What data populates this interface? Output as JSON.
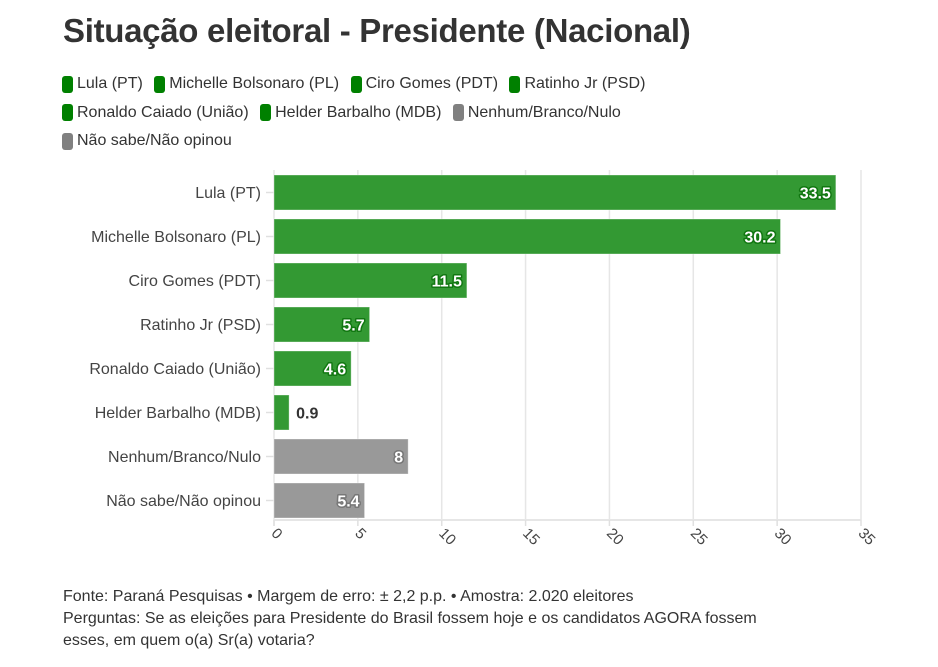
{
  "title": "Situação eleitoral - Presidente (Nacional)",
  "legend": [
    {
      "label": "Lula (PT)",
      "color": "#008000"
    },
    {
      "label": "Michelle Bolsonaro (PL)",
      "color": "#008000"
    },
    {
      "label": "Ciro Gomes (PDT)",
      "color": "#008000"
    },
    {
      "label": "Ratinho Jr (PSD)",
      "color": "#008000"
    },
    {
      "label": "Ronaldo Caiado (União)",
      "color": "#008000"
    },
    {
      "label": "Helder Barbalho (MDB)",
      "color": "#008000"
    },
    {
      "label": "Nenhum/Branco/Nulo",
      "color": "#808080"
    },
    {
      "label": "Não sabe/Não opinou",
      "color": "#808080"
    }
  ],
  "chart_data": {
    "type": "bar",
    "orientation": "horizontal",
    "title": "Situação eleitoral - Presidente (Nacional)",
    "categories": [
      "Lula (PT)",
      "Michelle Bolsonaro (PL)",
      "Ciro Gomes (PDT)",
      "Ratinho Jr (PSD)",
      "Ronaldo Caiado (União)",
      "Helder Barbalho (MDB)",
      "Nenhum/Branco/Nulo",
      "Não sabe/Não opinou"
    ],
    "values": [
      33.5,
      30.2,
      11.5,
      5.7,
      4.6,
      0.9,
      8,
      5.4
    ],
    "labels": [
      "33.5",
      "30.2",
      "11.5",
      "5.7",
      "4.6",
      "0.9",
      "8",
      "5.4"
    ],
    "colors": [
      "#339933",
      "#339933",
      "#339933",
      "#339933",
      "#339933",
      "#339933",
      "#999999",
      "#999999"
    ],
    "label_stroke": [
      "#117711",
      "#117711",
      "#117711",
      "#117711",
      "#117711",
      "#117711",
      "#777777",
      "#777777"
    ],
    "xlim": [
      0,
      35
    ],
    "xticks": [
      "0",
      "5",
      "10",
      "15",
      "20",
      "25",
      "30",
      "35"
    ],
    "xtick_values": [
      0,
      5,
      10,
      15,
      20,
      25,
      30,
      35
    ],
    "xlabel": "",
    "ylabel": "",
    "grid": true,
    "legend_position": "top-left"
  },
  "footer": {
    "source": "Fonte: Paraná Pesquisas • Margem de erro: ± 2,2 p.p. • Amostra: 2.020 eleitores",
    "question_line1": "Perguntas: Se as eleições para Presidente do Brasil fossem hoje e os candidatos AGORA fossem",
    "question_line2": "esses, em quem o(a) Sr(a) votaria?"
  }
}
